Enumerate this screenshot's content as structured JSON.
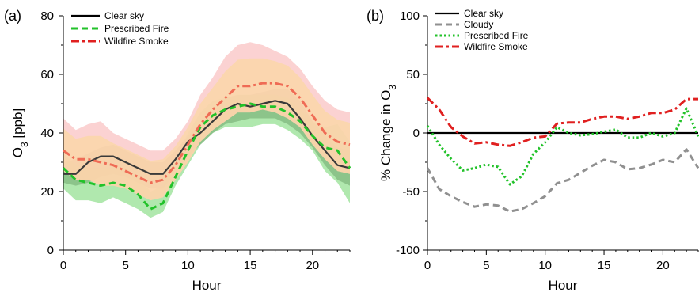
{
  "chart_data": [
    {
      "panel_label": "(a)",
      "type": "line",
      "xlabel": "Hour",
      "ylabel_main": "O",
      "ylabel_sub": "3",
      "ylabel_tail": " [ppb]",
      "xlim": [
        0,
        23
      ],
      "ylim": [
        0,
        80
      ],
      "xticks": [
        0,
        5,
        10,
        15,
        20
      ],
      "yticks": [
        0,
        20,
        40,
        60,
        80
      ],
      "legend_position": "top-left",
      "x": [
        0,
        1,
        2,
        3,
        4,
        5,
        6,
        7,
        8,
        9,
        10,
        11,
        12,
        13,
        14,
        15,
        16,
        17,
        18,
        19,
        20,
        21,
        22,
        23
      ],
      "series": [
        {
          "name": "Clear sky",
          "color": "#000000",
          "dash": "solid",
          "values": [
            26,
            26,
            30,
            32,
            32,
            30,
            28,
            26,
            26,
            31,
            37,
            40,
            44,
            48,
            50,
            49,
            50,
            51,
            50,
            45,
            39,
            34,
            29,
            28
          ],
          "band_lower": [
            23,
            22,
            23,
            25,
            26,
            25,
            23,
            21,
            21,
            26,
            32,
            36,
            40,
            43,
            44,
            45,
            45,
            45,
            43,
            40,
            35,
            29,
            24,
            22
          ],
          "band_upper": [
            30,
            31,
            33,
            35,
            36,
            34,
            32,
            30,
            30,
            34,
            39,
            43,
            47,
            52,
            53,
            53,
            54,
            55,
            55,
            51,
            44,
            39,
            35,
            34
          ],
          "band_color": "#6d6d6d"
        },
        {
          "name": "Prescribed Fire",
          "color": "#22c22a",
          "dash": "dashed",
          "values": [
            28,
            24,
            23,
            22,
            23,
            22,
            19,
            14,
            16,
            25,
            34,
            42,
            46,
            48,
            49,
            50,
            49,
            49,
            47,
            44,
            39,
            35,
            34,
            28
          ],
          "band_lower": [
            21,
            17,
            17,
            16,
            18,
            16,
            14,
            11,
            13,
            22,
            29,
            36,
            40,
            42,
            42,
            42,
            43,
            43,
            41,
            38,
            34,
            27,
            23,
            16
          ],
          "band_upper": [
            33,
            29,
            28,
            28,
            28,
            28,
            25,
            20,
            22,
            31,
            40,
            47,
            51,
            52,
            53,
            53,
            53,
            53,
            52,
            48,
            44,
            42,
            43,
            37
          ],
          "band_color": "#70d66b"
        },
        {
          "name": "Wildfire Smoke",
          "color": "#e02020",
          "dash": "dashdot",
          "values": [
            34,
            31,
            31,
            30,
            29,
            27,
            25,
            23,
            24,
            29,
            36,
            43,
            48,
            52,
            56,
            56,
            57,
            57,
            56,
            52,
            46,
            40,
            37,
            36
          ],
          "band_lower": [
            27,
            24,
            24,
            22,
            22,
            21,
            19,
            17,
            18,
            24,
            30,
            37,
            41,
            44,
            47,
            47,
            48,
            47,
            45,
            42,
            36,
            31,
            27,
            26
          ],
          "band_upper": [
            45,
            41,
            43,
            44,
            40,
            38,
            36,
            34,
            34,
            38,
            44,
            53,
            59,
            66,
            70,
            71,
            70,
            68,
            66,
            62,
            56,
            51,
            48,
            47
          ],
          "band_color": "#f9c3c3",
          "band_color2": "#fbd7a6"
        }
      ]
    },
    {
      "panel_label": "(b)",
      "type": "line",
      "xlabel": "Hour",
      "ylabel_main": "% Change in O",
      "ylabel_sub": "3",
      "xlim": [
        0,
        23
      ],
      "ylim": [
        -100,
        100
      ],
      "xticks": [
        0,
        5,
        10,
        15,
        20
      ],
      "yticks": [
        -100,
        -50,
        0,
        50,
        100
      ],
      "legend_position": "top-left",
      "x": [
        0,
        1,
        2,
        3,
        4,
        5,
        6,
        7,
        8,
        9,
        10,
        11,
        12,
        13,
        14,
        15,
        16,
        17,
        18,
        19,
        20,
        21,
        22,
        23
      ],
      "series": [
        {
          "name": "Clear sky",
          "color": "#000000",
          "dash": "solid",
          "values": [
            0,
            0,
            0,
            0,
            0,
            0,
            0,
            0,
            0,
            0,
            0,
            0,
            0,
            0,
            0,
            0,
            0,
            0,
            0,
            0,
            0,
            0,
            0,
            0
          ]
        },
        {
          "name": "Cloudy",
          "color": "#909090",
          "dash": "dashed",
          "values": [
            -30,
            -48,
            -54,
            -59,
            -63,
            -61,
            -62,
            -67,
            -65,
            -60,
            -54,
            -43,
            -40,
            -34,
            -28,
            -23,
            -25,
            -31,
            -30,
            -27,
            -23,
            -25,
            -14,
            -30
          ]
        },
        {
          "name": "Prescribed Fire",
          "color": "#22c22a",
          "dash": "dotted",
          "values": [
            6,
            -10,
            -22,
            -32,
            -30,
            -27,
            -29,
            -44,
            -37,
            -18,
            -8,
            5,
            0,
            -2,
            -1,
            1,
            3,
            -4,
            -4,
            0,
            -3,
            0,
            21,
            -3
          ]
        },
        {
          "name": "Wildfire Smoke",
          "color": "#e02020",
          "dash": "dashdot",
          "values": [
            30,
            20,
            5,
            -3,
            -9,
            -8,
            -10,
            -11,
            -8,
            -4,
            -3,
            8,
            9,
            9,
            12,
            14,
            14,
            12,
            14,
            17,
            17,
            20,
            29,
            29
          ]
        }
      ]
    }
  ]
}
